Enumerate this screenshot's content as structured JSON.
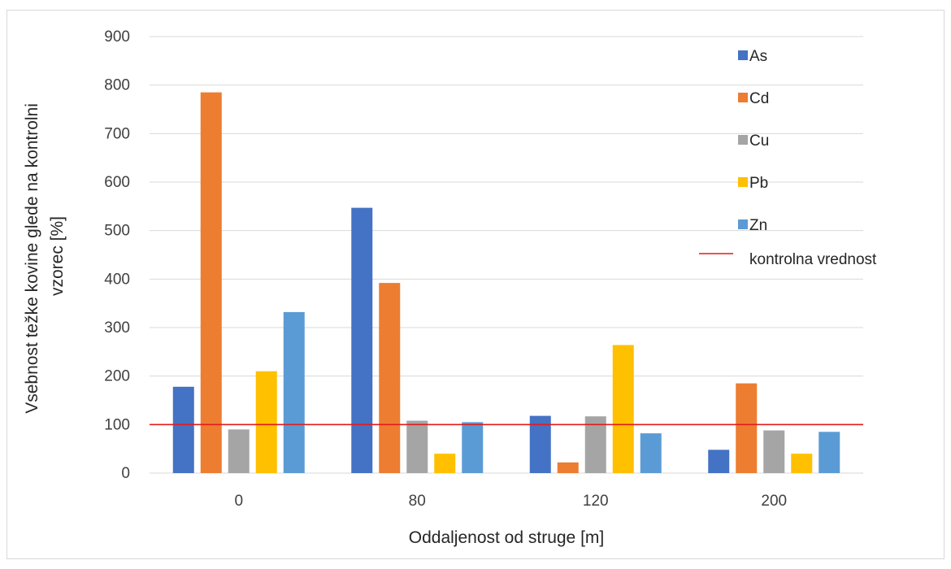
{
  "chart_data": {
    "type": "bar",
    "categories": [
      "0",
      "80",
      "120",
      "200"
    ],
    "series": [
      {
        "name": "As",
        "color": "#4472C4",
        "values": [
          178,
          547,
          118,
          48
        ]
      },
      {
        "name": "Cd",
        "color": "#ED7D31",
        "values": [
          785,
          392,
          22,
          185
        ]
      },
      {
        "name": "Cu",
        "color": "#A5A5A5",
        "values": [
          90,
          108,
          117,
          88
        ]
      },
      {
        "name": "Pb",
        "color": "#FFC000",
        "values": [
          210,
          40,
          264,
          40
        ]
      },
      {
        "name": "Zn",
        "color": "#5B9BD5",
        "values": [
          332,
          105,
          82,
          85
        ]
      }
    ],
    "reference_line": {
      "name": "kontrolna vrednost",
      "value": 100,
      "color": "#E31A1C"
    },
    "xlabel": "Oddaljenost od struge [m]",
    "ylabel_lines": [
      "Vsebnost težke kovine glede na kontrolni",
      "vzorec [%]"
    ],
    "ylim": [
      0,
      900
    ],
    "yticks": [
      0,
      100,
      200,
      300,
      400,
      500,
      600,
      700,
      800,
      900
    ],
    "grid": true,
    "legend_position": "right"
  }
}
